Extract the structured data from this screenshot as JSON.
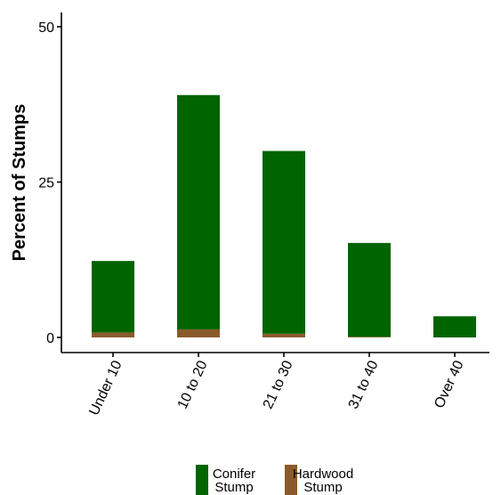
{
  "chart_data": {
    "type": "bar",
    "stacked": true,
    "categories": [
      "Under 10",
      "10 to 20",
      "21 to 30",
      "31 to 40",
      "Over 40"
    ],
    "series": [
      {
        "name": "Hardwood Stump",
        "name_lines": [
          "Hardwood",
          "Stump"
        ],
        "color": "#8B5A2B",
        "values": [
          0.8,
          1.3,
          0.6,
          0.1,
          0.0
        ]
      },
      {
        "name": "Conifer Stump",
        "name_lines": [
          "Conifer",
          "Stump"
        ],
        "color": "#006400",
        "values": [
          11.5,
          37.7,
          29.4,
          15.1,
          3.4
        ]
      }
    ],
    "title": "",
    "xlabel": "",
    "ylabel": "Percent of Stumps",
    "ylim": [
      0,
      50
    ],
    "yticks": [
      0,
      25,
      50
    ],
    "grid": false,
    "legend": {
      "position": "bottom",
      "order": [
        "Conifer Stump",
        "Hardwood Stump"
      ]
    }
  }
}
